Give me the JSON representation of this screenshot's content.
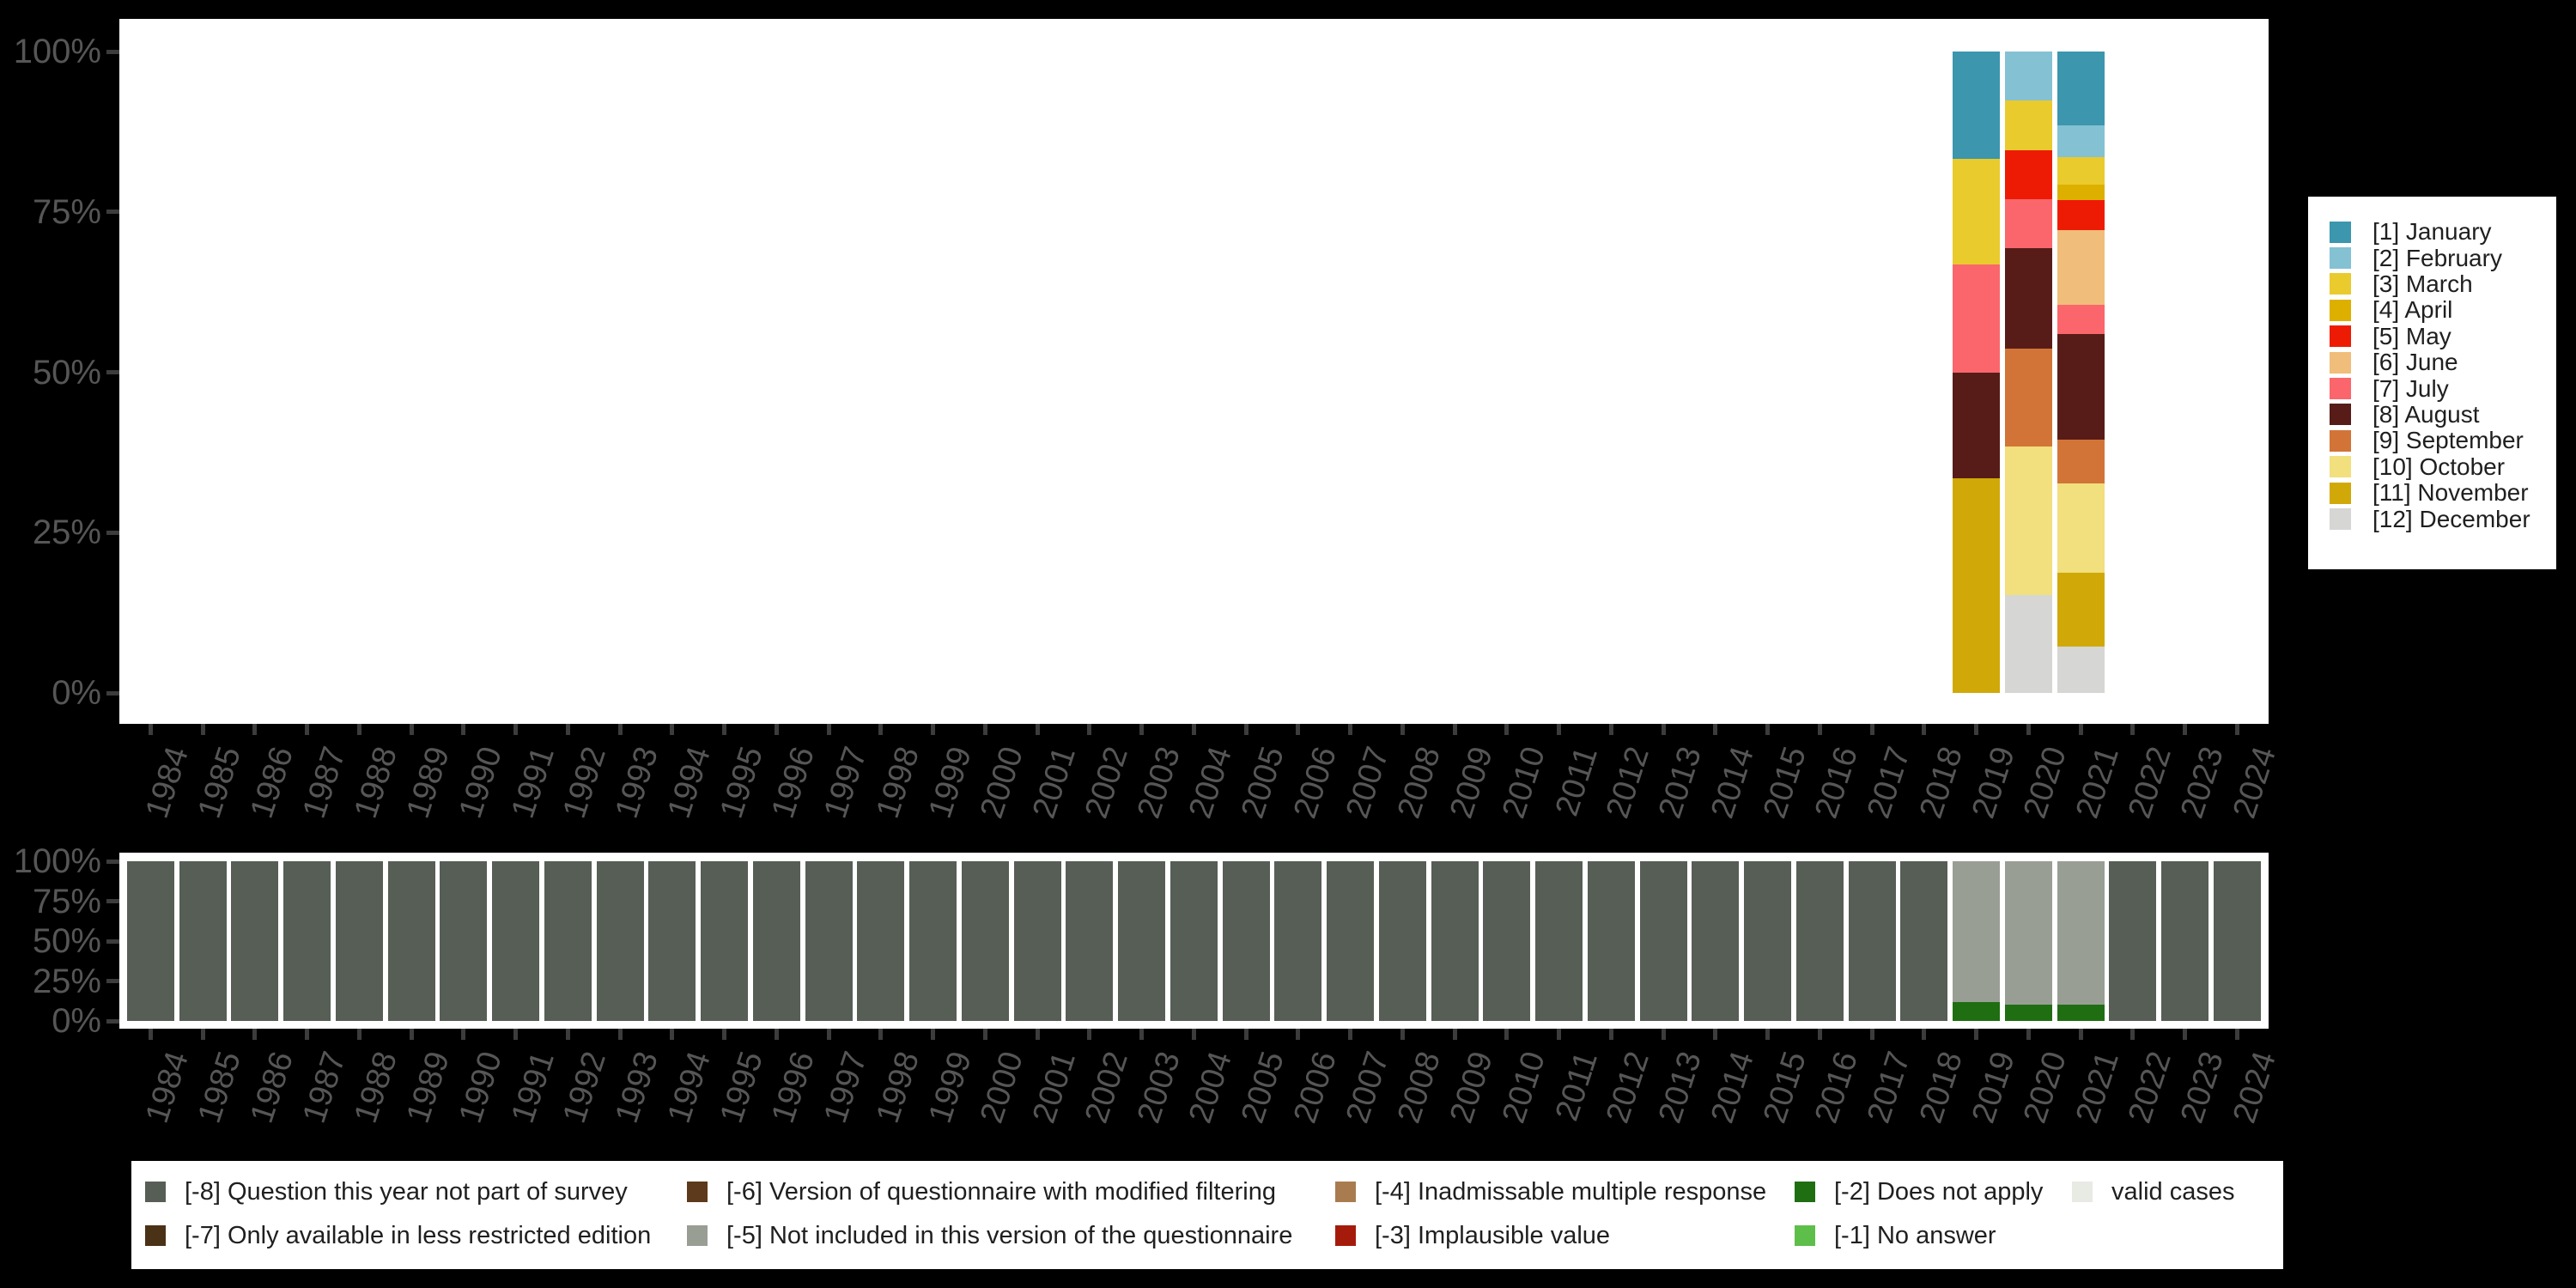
{
  "figure": {
    "background": "#000000",
    "y_axis_ticks": [
      "100%",
      "75%",
      "50%",
      "25%",
      "0%"
    ],
    "x_axis_years": [
      "1984",
      "1985",
      "1986",
      "1987",
      "1988",
      "1989",
      "1990",
      "1991",
      "1992",
      "1993",
      "1994",
      "1995",
      "1996",
      "1997",
      "1998",
      "1999",
      "2000",
      "2001",
      "2002",
      "2003",
      "2004",
      "2005",
      "2006",
      "2007",
      "2008",
      "2009",
      "2010",
      "2011",
      "2012",
      "2013",
      "2014",
      "2015",
      "2016",
      "2017",
      "2018",
      "2019",
      "2020",
      "2021",
      "2022",
      "2023",
      "2024"
    ]
  },
  "month_legend": {
    "items": [
      {
        "code": "1",
        "label": "[1] January",
        "color": "#3b96ae"
      },
      {
        "code": "2",
        "label": "[2] February",
        "color": "#84c1d3"
      },
      {
        "code": "3",
        "label": "[3] March",
        "color": "#e9cb2d"
      },
      {
        "code": "4",
        "label": "[4] April",
        "color": "#ddb000"
      },
      {
        "code": "5",
        "label": "[5] May",
        "color": "#ee1b04"
      },
      {
        "code": "6",
        "label": "[6] June",
        "color": "#f0bd7a"
      },
      {
        "code": "7",
        "label": "[7] July",
        "color": "#fa666b"
      },
      {
        "code": "8",
        "label": "[8] August",
        "color": "#571c17"
      },
      {
        "code": "9",
        "label": "[9] September",
        "color": "#d27438"
      },
      {
        "code": "10",
        "label": "[10] October",
        "color": "#f2df7d"
      },
      {
        "code": "11",
        "label": "[11] November",
        "color": "#d0a908"
      },
      {
        "code": "12",
        "label": "[12] December",
        "color": "#d6d6d4"
      }
    ]
  },
  "missing_legend": {
    "columns": [
      [
        {
          "code": "-8",
          "label": "[-8] Question this year not part of survey",
          "color": "#565e55"
        },
        {
          "code": "-7",
          "label": "[-7] Only available in less restricted edition",
          "color": "#4a3217"
        }
      ],
      [
        {
          "code": "-6",
          "label": "[-6] Version of questionnaire with modified filtering",
          "color": "#5c3a1b"
        },
        {
          "code": "-5",
          "label": "[-5] Not included in this version of the questionnaire",
          "color": "#999e95"
        }
      ],
      [
        {
          "code": "-4",
          "label": "[-4] Inadmissable multiple response",
          "color": "#a97c50"
        },
        {
          "code": "-3",
          "label": "[-3] Implausible value",
          "color": "#a51b0b"
        }
      ],
      [
        {
          "code": "-2",
          "label": "[-2] Does not apply",
          "color": "#1f6e12"
        },
        {
          "code": "-1",
          "label": "[-1] No answer",
          "color": "#5dbf4a"
        }
      ],
      [
        {
          "code": "valid",
          "label": "valid cases",
          "color": "#e8eae4"
        }
      ]
    ]
  },
  "chart_data": [
    {
      "name": "distribution-of-interview-months-per-year",
      "type": "bar",
      "stacked": true,
      "unit": "percent",
      "x_axis": "survey years 1984-2024 (see figure.x_axis_years)",
      "y_axis": {
        "min": 0,
        "max": 100,
        "ticks": [
          "100%",
          "75%",
          "50%",
          "25%",
          "0%"
        ]
      },
      "legend_position": "right",
      "default_bar": [],
      "bars": {
        "2019": [
          {
            "code": "1",
            "value": 16.7
          },
          {
            "code": "3",
            "value": 16.5
          },
          {
            "code": "7",
            "value": 16.9
          },
          {
            "code": "8",
            "value": 16.5
          },
          {
            "code": "11",
            "value": 33.4
          }
        ],
        "2020": [
          {
            "code": "2",
            "value": 7.6
          },
          {
            "code": "3",
            "value": 7.8
          },
          {
            "code": "5",
            "value": 7.6
          },
          {
            "code": "7",
            "value": 7.7
          },
          {
            "code": "8",
            "value": 15.6
          },
          {
            "code": "9",
            "value": 15.3
          },
          {
            "code": "10",
            "value": 23.1
          },
          {
            "code": "12",
            "value": 15.3
          }
        ],
        "2021": [
          {
            "code": "1",
            "value": 11.5
          },
          {
            "code": "2",
            "value": 5.0
          },
          {
            "code": "3",
            "value": 4.3
          },
          {
            "code": "4",
            "value": 2.4
          },
          {
            "code": "5",
            "value": 4.6
          },
          {
            "code": "6",
            "value": 11.7
          },
          {
            "code": "7",
            "value": 4.5
          },
          {
            "code": "8",
            "value": 16.5
          },
          {
            "code": "9",
            "value": 6.9
          },
          {
            "code": "10",
            "value": 13.9
          },
          {
            "code": "11",
            "value": 11.5
          },
          {
            "code": "12",
            "value": 7.2
          }
        ]
      }
    },
    {
      "name": "missing-value-categories-per-year",
      "type": "bar",
      "stacked": true,
      "unit": "percent",
      "x_axis": "survey years 1984-2024 (see figure.x_axis_years)",
      "y_axis": {
        "min": 0,
        "max": 100,
        "ticks": [
          "100%",
          "75%",
          "50%",
          "25%",
          "0%"
        ]
      },
      "legend_position": "bottom",
      "default_bar": [
        {
          "code": "-8",
          "value": 100
        }
      ],
      "bars": {
        "2019": [
          {
            "code": "-5",
            "value": 88.2
          },
          {
            "code": "-2",
            "value": 11.8
          }
        ],
        "2020": [
          {
            "code": "-5",
            "value": 90.0
          },
          {
            "code": "-2",
            "value": 10.0
          }
        ],
        "2021": [
          {
            "code": "-5",
            "value": 89.6
          },
          {
            "code": "-2",
            "value": 10.4
          }
        ]
      }
    }
  ]
}
